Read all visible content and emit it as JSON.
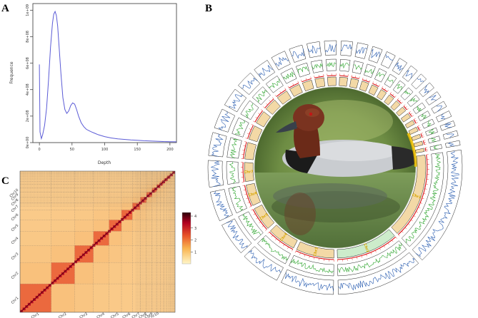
{
  "panels": {
    "a": {
      "label": "A"
    },
    "b": {
      "label": "B"
    },
    "c": {
      "label": "C"
    }
  },
  "chart_data": [
    {
      "type": "line",
      "panel": "A",
      "xlabel": "Depth",
      "ylabel": "Frequence",
      "xlim": [
        -10,
        210
      ],
      "ylim": [
        0,
        1050000000
      ],
      "x_ticks": [
        "0",
        "50",
        "100",
        "150",
        "200"
      ],
      "y_ticks": [
        "0e+00",
        "2e+08",
        "4e+08",
        "6e+08",
        "8e+08",
        "1e+09"
      ],
      "grid": false,
      "line_color": "#5b5bd6",
      "series": [
        {
          "x": [
            0,
            1,
            3,
            5,
            8,
            11,
            14,
            17,
            20,
            22,
            24,
            26,
            28,
            30,
            33,
            36,
            39,
            42,
            45,
            48,
            51,
            54,
            57,
            60,
            64,
            68,
            72,
            76,
            80,
            85,
            90,
            100,
            110,
            120,
            130,
            140,
            150,
            160,
            170,
            180,
            190,
            200,
            210
          ],
          "values": [
            590000000,
            80000000,
            30000000,
            60000000,
            130000000,
            260000000,
            470000000,
            720000000,
            900000000,
            970000000,
            990000000,
            960000000,
            880000000,
            740000000,
            520000000,
            340000000,
            250000000,
            220000000,
            240000000,
            280000000,
            300000000,
            290000000,
            250000000,
            200000000,
            150000000,
            120000000,
            100000000,
            90000000,
            80000000,
            70000000,
            60000000,
            45000000,
            35000000,
            28000000,
            24000000,
            20000000,
            17000000,
            14000000,
            12000000,
            10000000,
            8000000,
            7000000,
            6000000
          ]
        }
      ]
    },
    {
      "type": "heatmap",
      "panel": "C",
      "colorbar_ticks": [
        "1",
        "2",
        "3",
        "4"
      ],
      "colorbar_range": [
        0,
        4.3
      ],
      "colors": [
        "#fff6c8",
        "#f9b450",
        "#e8532a",
        "#b10020",
        "#2b0008"
      ],
      "y_labels": [
        "Chr1",
        "Chr2",
        "Chr3",
        "Chr4",
        "Chr5",
        "Chr6",
        "Chr7",
        "Chr8",
        "Chr9",
        "Chr10"
      ],
      "x_labels": [
        "Chr1",
        "Chr2",
        "Chr3",
        "Chr4",
        "Chr5",
        "Chr6",
        "Chr7",
        "Chr8",
        "Chr9",
        "Chr10"
      ],
      "block_sizes": [
        0.2,
        0.15,
        0.12,
        0.1,
        0.08,
        0.07,
        0.05,
        0.04,
        0.035,
        0.03,
        0.025,
        0.02,
        0.018,
        0.015,
        0.012,
        0.01,
        0.01,
        0.008
      ]
    },
    {
      "type": "circos",
      "panel": "B",
      "chromosome_labels": [
        "Chr1",
        "Chr2",
        "Chr3",
        "Chr4",
        "Chr5",
        "Chr6",
        "Chr7"
      ],
      "chromosome_sizes": [
        18,
        13,
        8,
        6,
        5,
        4.5,
        4,
        3.5,
        3,
        2.8,
        2.6,
        2.4,
        2.2,
        2,
        1.9,
        1.8,
        1.7,
        1.6,
        1.5,
        1.4,
        1.3,
        1.2,
        1.1,
        1,
        1,
        0.9,
        0.9,
        0.8,
        0.8,
        0.7
      ],
      "track_colors": {
        "ideogram": "#f3d9a6",
        "scale": "#d90000",
        "gc": "#2ea52e",
        "density": "#2a5db0",
        "link": "#f2c200"
      }
    }
  ],
  "illustrations": {
    "photo": "duck-photo"
  }
}
